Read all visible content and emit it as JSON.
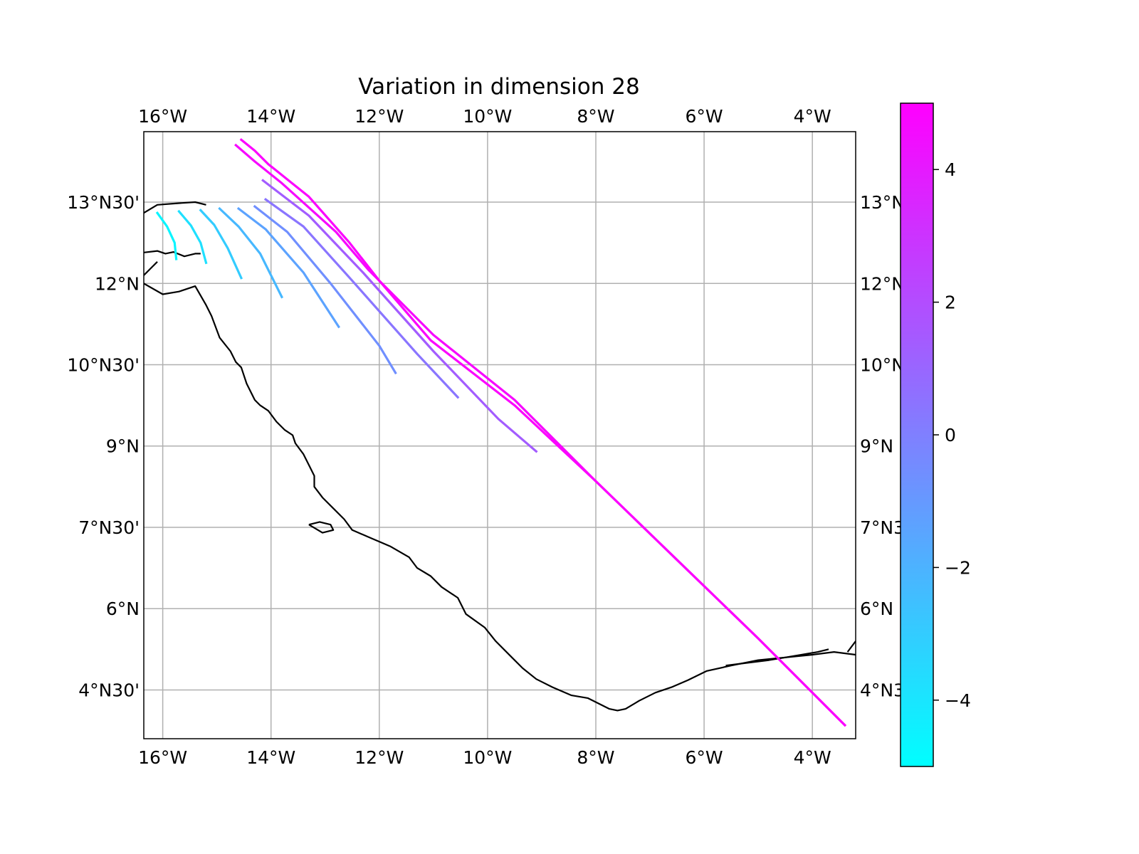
{
  "chart_data": {
    "type": "line",
    "title": "Variation in dimension 28",
    "xlim": [
      -16.35,
      -3.2
    ],
    "ylim": [
      3.6,
      14.8
    ],
    "x_ticks": [
      {
        "value": -16,
        "label": "16°W"
      },
      {
        "value": -14,
        "label": "14°W"
      },
      {
        "value": -12,
        "label": "12°W"
      },
      {
        "value": -10,
        "label": "10°W"
      },
      {
        "value": -8,
        "label": "8°W"
      },
      {
        "value": -6,
        "label": "6°W"
      },
      {
        "value": -4,
        "label": "4°W"
      }
    ],
    "y_ticks": [
      {
        "value": 4.5,
        "label": "4°N30'",
        "right_label": "4°N3"
      },
      {
        "value": 6,
        "label": "6°N",
        "right_label": "6°N"
      },
      {
        "value": 7.5,
        "label": "7°N30'",
        "right_label": "7°N3"
      },
      {
        "value": 9,
        "label": "9°N",
        "right_label": "9°N"
      },
      {
        "value": 10.5,
        "label": "10°N30'",
        "right_label": "10°N        '"
      },
      {
        "value": 12,
        "label": "12°N",
        "right_label": "12°N"
      },
      {
        "value": 13.5,
        "label": "13°N30'",
        "right_label": "13°N        '"
      }
    ],
    "grid": true,
    "colorbar": {
      "range": [
        -5,
        5
      ],
      "colormap": [
        "#00ffff",
        "#ff00ff"
      ],
      "ticks": [
        {
          "value": -4,
          "label": "−4"
        },
        {
          "value": -2,
          "label": "−2"
        },
        {
          "value": 0,
          "label": "0"
        },
        {
          "value": 2,
          "label": "2"
        },
        {
          "value": 4,
          "label": "4"
        }
      ]
    },
    "series": [
      {
        "color_value": -4.6,
        "x": [
          -16.1,
          -15.92,
          -15.78,
          -15.75
        ],
        "y": [
          13.3,
          13.05,
          12.75,
          12.45
        ]
      },
      {
        "color_value": -3.8,
        "x": [
          -15.7,
          -15.48,
          -15.3,
          -15.2
        ],
        "y": [
          13.33,
          13.07,
          12.75,
          12.38
        ]
      },
      {
        "color_value": -3.0,
        "x": [
          -15.3,
          -15.05,
          -14.8,
          -14.55
        ],
        "y": [
          13.35,
          13.08,
          12.65,
          12.1
        ]
      },
      {
        "color_value": -2.2,
        "x": [
          -14.95,
          -14.6,
          -14.2,
          -13.8
        ],
        "y": [
          13.38,
          13.05,
          12.55,
          11.75
        ]
      },
      {
        "color_value": -1.4,
        "x": [
          -14.6,
          -14.1,
          -13.4,
          -12.75
        ],
        "y": [
          13.38,
          13.0,
          12.2,
          11.2
        ]
      },
      {
        "color_value": -0.6,
        "x": [
          -14.3,
          -13.7,
          -12.9,
          -12.0,
          -11.7
        ],
        "y": [
          13.42,
          12.95,
          12.0,
          10.85,
          10.35
        ]
      },
      {
        "color_value": 0.4,
        "x": [
          -14.1,
          -13.4,
          -12.5,
          -11.3,
          -10.55
        ],
        "y": [
          13.55,
          13.05,
          12.05,
          10.7,
          9.9
        ]
      },
      {
        "color_value": 1.4,
        "x": [
          -14.15,
          -13.3,
          -12.3,
          -11.0,
          -9.8,
          -9.1
        ],
        "y": [
          13.9,
          13.25,
          12.2,
          10.75,
          9.5,
          8.9
        ]
      },
      {
        "color_value": 4.7,
        "x": [
          -14.65,
          -14.3,
          -13.8,
          -12.8,
          -12.2,
          -11.0,
          -9.5,
          -8.0,
          -6.5,
          -5.0,
          -3.4
        ],
        "y": [
          14.55,
          14.25,
          13.85,
          12.95,
          12.25,
          11.05,
          9.85,
          8.35,
          6.9,
          5.45,
          3.85
        ]
      },
      {
        "color_value": 4.9,
        "x": [
          -14.55,
          -14.3,
          -14.05,
          -13.3,
          -12.55,
          -12.0,
          -11.05,
          -9.5,
          -8.0,
          -6.5,
          -5.0,
          -3.4
        ],
        "y": [
          14.65,
          14.45,
          14.2,
          13.6,
          12.75,
          12.05,
          10.95,
          9.75,
          8.35,
          6.9,
          5.45,
          3.85
        ]
      }
    ],
    "coastline": [
      {
        "x": [
          -16.35,
          -16.1,
          -15.7,
          -15.4,
          -15.2
        ],
        "y": [
          13.3,
          13.45,
          13.48,
          13.5,
          13.45
        ]
      },
      {
        "x": [
          -16.35,
          -16.1,
          -15.95,
          -15.8,
          -15.6,
          -15.4,
          -15.3
        ],
        "y": [
          12.57,
          12.6,
          12.55,
          12.58,
          12.5,
          12.55,
          12.55
        ]
      },
      {
        "x": [
          -16.35,
          -16.2,
          -16.1
        ],
        "y": [
          12.15,
          12.3,
          12.4
        ]
      },
      {
        "x": [
          -16.35,
          -16.0,
          -15.7,
          -15.4,
          -15.2,
          -15.1,
          -14.95,
          -14.75,
          -14.65,
          -14.55,
          -14.45,
          -14.3,
          -14.2,
          -14.05,
          -13.9,
          -13.75,
          -13.6,
          -13.55,
          -13.4,
          -13.3,
          -13.2,
          -13.2,
          -13.05,
          -12.85,
          -12.65,
          -12.5,
          -12.15,
          -11.8,
          -11.45,
          -11.3,
          -11.05,
          -10.85,
          -10.55,
          -10.4,
          -10.05,
          -9.85,
          -9.55,
          -9.35,
          -9.1,
          -8.8,
          -8.45,
          -8.15,
          -7.95,
          -7.75,
          -7.6,
          -7.45,
          -7.2,
          -6.9,
          -6.6,
          -6.3,
          -5.95,
          -5.5,
          -5.0,
          -4.5,
          -4.0,
          -3.6,
          -3.2
        ],
        "y": [
          12.0,
          11.8,
          11.85,
          11.95,
          11.6,
          11.4,
          11.0,
          10.75,
          10.55,
          10.45,
          10.15,
          9.85,
          9.75,
          9.65,
          9.45,
          9.3,
          9.2,
          9.05,
          8.85,
          8.65,
          8.45,
          8.25,
          8.05,
          7.85,
          7.65,
          7.45,
          7.3,
          7.15,
          6.95,
          6.75,
          6.6,
          6.4,
          6.2,
          5.9,
          5.65,
          5.4,
          5.1,
          4.9,
          4.7,
          4.55,
          4.4,
          4.35,
          4.25,
          4.15,
          4.12,
          4.15,
          4.3,
          4.45,
          4.55,
          4.68,
          4.85,
          4.95,
          5.05,
          5.1,
          5.15,
          5.2,
          5.15
        ]
      },
      {
        "x": [
          -13.3,
          -13.1,
          -12.9,
          -12.85,
          -13.05,
          -13.3
        ],
        "y": [
          7.55,
          7.6,
          7.55,
          7.45,
          7.4,
          7.55
        ]
      },
      {
        "x": [
          -5.6,
          -5.2,
          -4.8,
          -4.5,
          -4.2,
          -3.9,
          -3.7
        ],
        "y": [
          4.95,
          5.0,
          5.05,
          5.1,
          5.15,
          5.2,
          5.25
        ]
      },
      {
        "x": [
          -3.35,
          -3.2
        ],
        "y": [
          5.2,
          5.4
        ]
      }
    ]
  }
}
